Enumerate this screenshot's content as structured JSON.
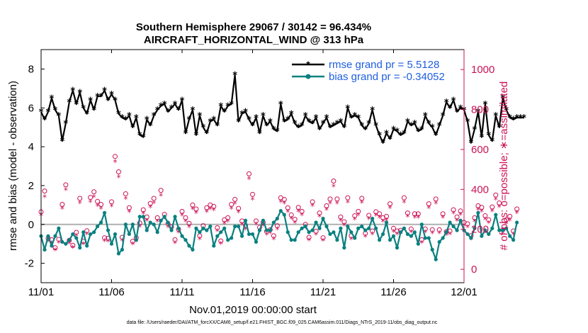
{
  "chart_data": {
    "type": "line",
    "title": "Southern Hemisphere 29067 / 30142 = 96.434%",
    "subtitle": "AIRCRAFT_HORIZONTAL_WIND @ 313 hPa",
    "xlabel": "Nov.01,2019 00:00:00 start",
    "ylabel": "rmse and bias (model - observation)",
    "y2label": "# of obs: o=possible; ∗=assimilated",
    "footnote": "data file: /Users/raeder/DAI/ATM_forcXX/CAM6_setup/f.e21.FHIST_BGC.f09_025.CAM6assim.011/Diags_NTrS_2019-11/obs_diag_output.nc",
    "xlim": [
      0,
      30
    ],
    "ylim": [
      -3,
      9
    ],
    "y2lim": [
      -67,
      1100
    ],
    "x_ticks": [
      {
        "x": 0,
        "label": "11/01"
      },
      {
        "x": 5,
        "label": "11/06"
      },
      {
        "x": 10,
        "label": "11/11"
      },
      {
        "x": 15,
        "label": "11/16"
      },
      {
        "x": 20,
        "label": "11/21"
      },
      {
        "x": 25,
        "label": "11/26"
      },
      {
        "x": 30,
        "label": "12/01"
      }
    ],
    "y_ticks": [
      "-2",
      "0",
      "2",
      "4",
      "6",
      "8"
    ],
    "y2_ticks": [
      "0",
      "200",
      "400",
      "600",
      "800",
      "1000"
    ],
    "zero_line": 0,
    "series": [
      {
        "name": "rmse grand pr = 5.5128",
        "color": "#000000",
        "marker": "star",
        "step_days": 0.25,
        "values": [
          5.8,
          5.4,
          5.8,
          6.5,
          5.9,
          5.6,
          4.3,
          5.2,
          6.3,
          6.9,
          6.2,
          6.8,
          6.0,
          5.7,
          6.4,
          5.9,
          6.6,
          6.6,
          6.9,
          6.4,
          6.7,
          6.4,
          5.7,
          5.5,
          5.4,
          5.6,
          5.0,
          5.5,
          4.6,
          4.5,
          5.4,
          5.1,
          5.6,
          5.9,
          6.1,
          6.2,
          5.8,
          6.0,
          6.2,
          5.9,
          6.4,
          4.7,
          5.4,
          5.9,
          4.6,
          5.6,
          5.0,
          4.7,
          5.3,
          5.4,
          5.1,
          6.1,
          5.8,
          6.1,
          6.2,
          7.7,
          5.3,
          5.7,
          5.8,
          5.4,
          5.1,
          5.5,
          4.7,
          5.6,
          5.1,
          5.3,
          4.9,
          4.8,
          6.2,
          5.3,
          5.4,
          5.7,
          5.2,
          5.0,
          5.1,
          5.6,
          5.3,
          5.2,
          5.5,
          4.9,
          5.2,
          5.5,
          5.0,
          5.1,
          5.2,
          5.3,
          5.0,
          6.0,
          5.5,
          5.6,
          5.5,
          5.1,
          4.9,
          5.2,
          5.9,
          5.1,
          4.6,
          4.2,
          4.7,
          4.4,
          4.9,
          4.8,
          4.6,
          4.7,
          5.3,
          5.1,
          5.2,
          4.8,
          4.9,
          5.6,
          5.2,
          5.0,
          4.6,
          5.1,
          5.6,
          6.3,
          6.0,
          6.4,
          5.8,
          6.0,
          5.9,
          5.3,
          4.2,
          4.9,
          5.8,
          4.5,
          6.2,
          4.6,
          4.3,
          5.6,
          5.0,
          6.5,
          5.9,
          5.5,
          5.4,
          5.5,
          5.5,
          5.5
        ]
      },
      {
        "name": "bias grand pr = -0.34052",
        "color": "#0a8080",
        "marker": "circle",
        "step_days": 0.25,
        "values": [
          -0.6,
          -1.3,
          -0.6,
          -1.1,
          -0.6,
          -0.2,
          -0.9,
          -1.0,
          -0.8,
          -0.5,
          -0.7,
          -1.2,
          -0.4,
          -1.1,
          -0.5,
          -0.4,
          -0.1,
          0.1,
          0.6,
          -0.3,
          -1.0,
          -0.5,
          -1.5,
          -1.3,
          0.0,
          -0.5,
          0.0,
          -0.8,
          0.4,
          0.4,
          -0.3,
          0.1,
          0.0,
          -0.4,
          0.2,
          0.4,
          0.1,
          -0.3,
          0.4,
          -0.2,
          -0.6,
          -0.8,
          -1.1,
          -1.3,
          -0.2,
          -0.4,
          -0.2,
          -0.3,
          -0.1,
          -1.1,
          -0.6,
          -0.4,
          -0.2,
          -0.8,
          -0.7,
          -0.1,
          -0.1,
          -0.6,
          0.2,
          -0.5,
          -0.5,
          -0.9,
          -0.3,
          0.2,
          -0.3,
          -0.3,
          0.1,
          0.3,
          0.7,
          0.5,
          -0.4,
          -0.8,
          -0.8,
          -0.4,
          -0.2,
          -0.1,
          -0.4,
          -0.3,
          0.1,
          -0.2,
          0.3,
          -0.1,
          -0.5,
          -0.4,
          -0.8,
          -0.2,
          -1.2,
          -0.1,
          -0.4,
          -0.7,
          -0.2,
          -0.1,
          -0.3,
          -0.2,
          0.3,
          -0.2,
          -0.8,
          -0.5,
          0.1,
          -0.8,
          -0.6,
          -1.2,
          -0.4,
          -0.2,
          -0.5,
          -0.6,
          -0.4,
          -1.0,
          0.0,
          -0.7,
          -0.7,
          -1.3,
          -1.8,
          -0.9,
          -0.7,
          -0.4,
          0.1,
          -0.1,
          -0.3,
          0.2,
          -0.3,
          -0.5,
          -0.7,
          -0.2,
          0.6,
          -0.6,
          -0.3,
          -0.5,
          -0.2,
          0.5,
          -0.3,
          -0.3,
          -0.2,
          -0.6,
          -0.8,
          0.1
        ]
      }
    ],
    "obs_possible": {
      "name": "possible",
      "color": "#cc1155",
      "marker": "o",
      "step_days": 0.25,
      "values": [
        288,
        392,
        155,
        148,
        108,
        150,
        325,
        423,
        145,
        120,
        185,
        355,
        140,
        193,
        360,
        388,
        340,
        325,
        158,
        155,
        338,
        565,
        488,
        160,
        378,
        308,
        140,
        158,
        232,
        298,
        262,
        330,
        355,
        258,
        395,
        275,
        228,
        212,
        148,
        200,
        290,
        258,
        230,
        322,
        302,
        168,
        218,
        308,
        322,
        315,
        208,
        142,
        248,
        258,
        325,
        350,
        305,
        242,
        218,
        478,
        375,
        242,
        210,
        235,
        190,
        198,
        168,
        218,
        358,
        350,
        308,
        272,
        250,
        310,
        290,
        225,
        160,
        338,
        190,
        282,
        158,
        318,
        352,
        442,
        352,
        262,
        238,
        358,
        168,
        268,
        290,
        355,
        180,
        270,
        192,
        288,
        278,
        258,
        265,
        328,
        205,
        192,
        195,
        358,
        282,
        202,
        278,
        278,
        148,
        202,
        328,
        198,
        352,
        198,
        278,
        188,
        192,
        298,
        262,
        292,
        235,
        228,
        168,
        258,
        318,
        310,
        268,
        248,
        312,
        372,
        332,
        198,
        248,
        265,
        192,
        302
      ]
    },
    "obs_assimilated": {
      "name": "assimilated",
      "color": "#cc1155",
      "marker": "*",
      "step_days": 0.25,
      "values": [
        270,
        362,
        140,
        132,
        96,
        134,
        304,
        398,
        130,
        108,
        168,
        332,
        126,
        176,
        338,
        362,
        318,
        304,
        142,
        140,
        316,
        538,
        462,
        144,
        354,
        288,
        126,
        142,
        214,
        278,
        244,
        310,
        332,
        240,
        370,
        256,
        212,
        196,
        132,
        184,
        270,
        240,
        212,
        302,
        282,
        152,
        200,
        288,
        302,
        296,
        192,
        128,
        230,
        240,
        304,
        328,
        286,
        224,
        200,
        452,
        350,
        226,
        194,
        218,
        174,
        182,
        152,
        200,
        338,
        330,
        288,
        254,
        232,
        290,
        272,
        208,
        146,
        318,
        174,
        264,
        144,
        298,
        330,
        416,
        330,
        244,
        220,
        336,
        152,
        250,
        272,
        334,
        164,
        252,
        176,
        270,
        260,
        240,
        246,
        308,
        188,
        176,
        180,
        336,
        264,
        186,
        260,
        260,
        134,
        186,
        308,
        182,
        330,
        182,
        260,
        172,
        176,
        280,
        244,
        274,
        218,
        212,
        152,
        240,
        298,
        290,
        250,
        232,
        292,
        350,
        312,
        182,
        230,
        246,
        176,
        282
      ]
    }
  }
}
